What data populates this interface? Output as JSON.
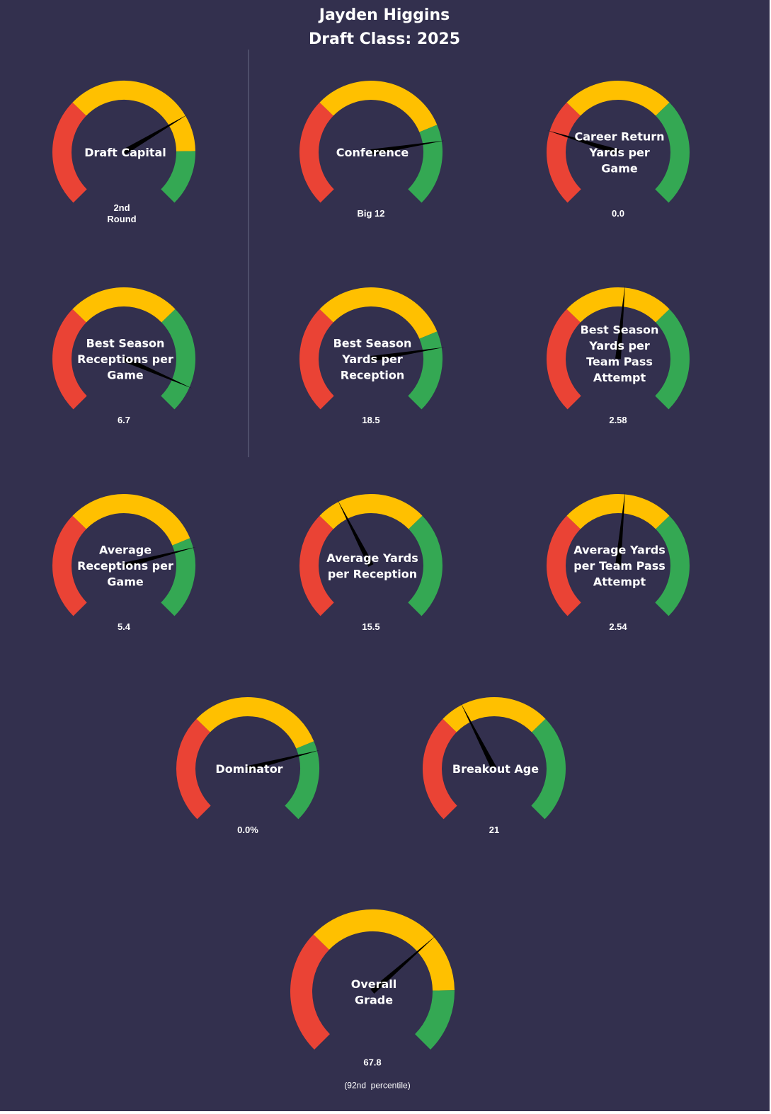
{
  "header": {
    "player_name": "Jayden Higgins",
    "draft_class": "Draft Class: 2025"
  },
  "colors": {
    "background": "#33304e",
    "red": "#ea4335",
    "yellow": "#ffc000",
    "green": "#34a853",
    "needle": "#000000",
    "divider": "#6a6a85",
    "text": "#ffffff"
  },
  "chart_data": {
    "type": "gauge",
    "scale": [
      0,
      100
    ],
    "bands": [
      {
        "name": "red",
        "range": [
          0,
          33
        ]
      },
      {
        "name": "yellow",
        "range": [
          33,
          67
        ]
      },
      {
        "name": "green",
        "range": [
          67,
          100
        ]
      }
    ],
    "gauges": [
      {
        "label_lines": [
          "Draft Capital"
        ],
        "value_lines": [
          "2nd",
          "Round"
        ],
        "percentile": 72,
        "yellow_end": 83
      },
      {
        "label_lines": [
          "Conference"
        ],
        "value_lines": [
          "Big 12"
        ],
        "percentile": 80,
        "yellow_end": 75
      },
      {
        "label_lines": [
          "Career Return",
          "Yards per",
          "Game"
        ],
        "value_lines": [
          "0.0"
        ],
        "percentile": 23,
        "yellow_end": 67
      },
      {
        "label_lines": [
          "Best Season",
          "Receptions per",
          "Game"
        ],
        "value_lines": [
          "6.7"
        ],
        "percentile": 92,
        "yellow_end": 67
      },
      {
        "label_lines": [
          "Best Season",
          "Yards per",
          "Reception"
        ],
        "value_lines": [
          "18.5"
        ],
        "percentile": 80,
        "yellow_end": 75
      },
      {
        "label_lines": [
          "Best Season",
          "Yards per",
          "Team Pass",
          "Attempt"
        ],
        "value_lines": [
          "2.58"
        ],
        "percentile": 52,
        "yellow_end": 67
      },
      {
        "label_lines": [
          "Average",
          "Receptions per",
          "Game"
        ],
        "value_lines": [
          "5.4"
        ],
        "percentile": 78,
        "yellow_end": 75
      },
      {
        "label_lines": [
          "Average Yards",
          "per Reception"
        ],
        "value_lines": [
          "15.5"
        ],
        "percentile": 40,
        "yellow_end": 67
      },
      {
        "label_lines": [
          "Average Yards",
          "per Team Pass",
          "Attempt"
        ],
        "value_lines": [
          "2.54"
        ],
        "percentile": 52,
        "yellow_end": 67
      },
      {
        "label_lines": [
          "Dominator"
        ],
        "value_lines": [
          "0.0%"
        ],
        "percentile": 78,
        "yellow_end": 75
      },
      {
        "label_lines": [
          "Breakout Age"
        ],
        "value_lines": [
          "21"
        ],
        "percentile": 40,
        "yellow_end": 67
      },
      {
        "label_lines": [
          "Overall",
          "Grade"
        ],
        "value_lines": [
          "67.8"
        ],
        "sub_text": "(92nd  percentile)",
        "percentile": 68,
        "yellow_end": 83
      }
    ]
  }
}
